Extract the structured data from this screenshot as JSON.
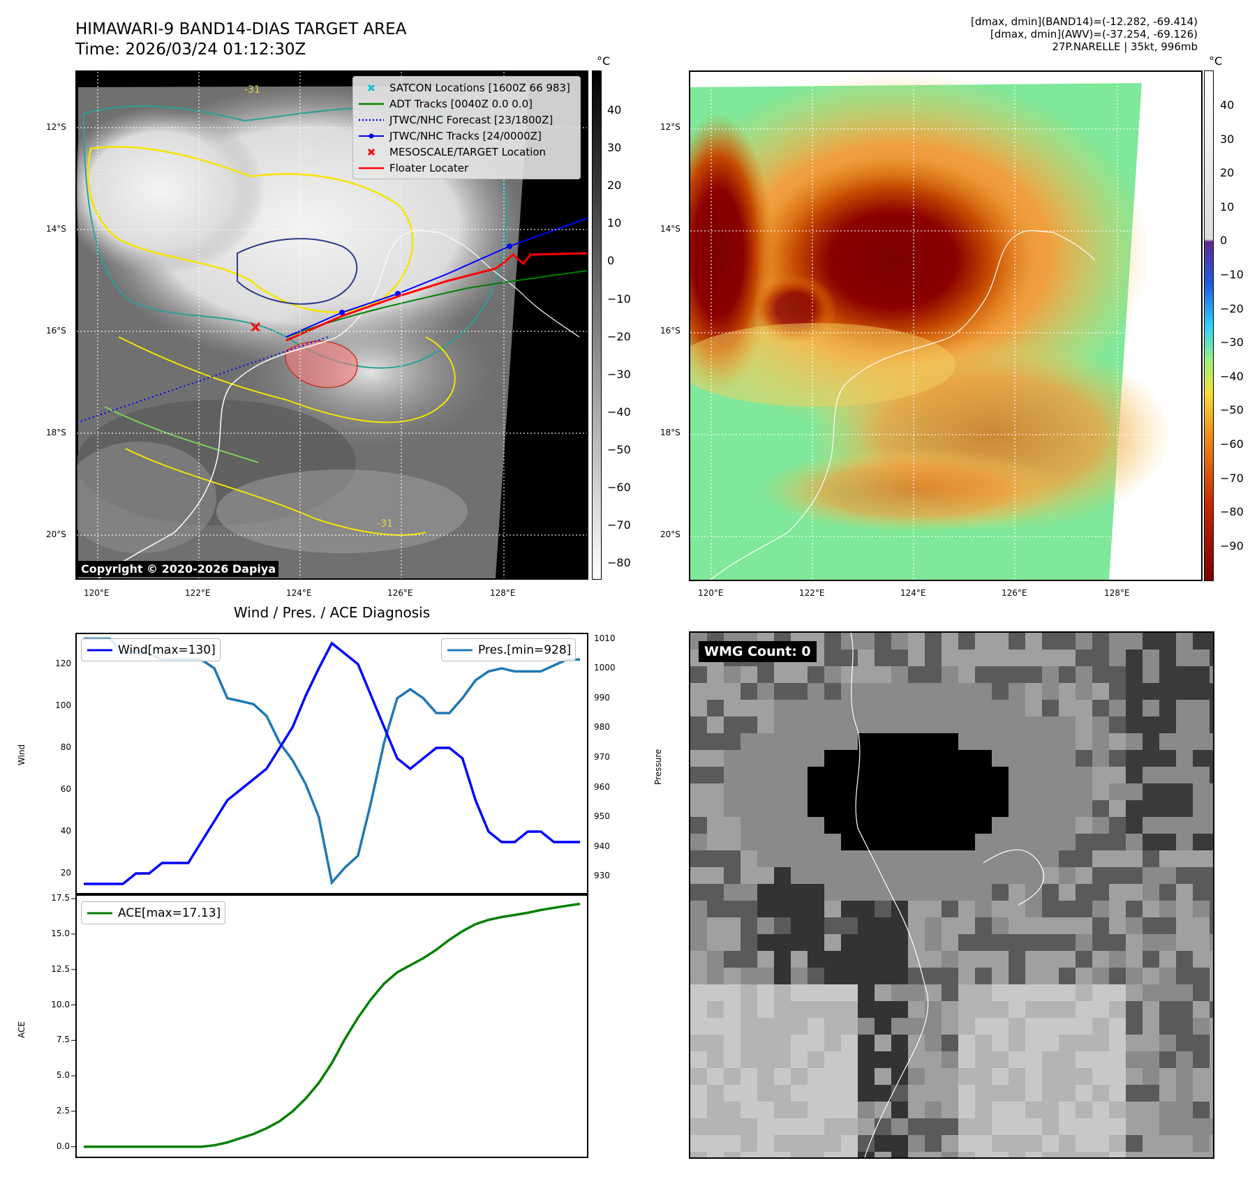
{
  "header": {
    "title_line1": "HIMAWARI-9 BAND14-DIAS TARGET AREA",
    "title_line2": "Time: 2026/03/24 01:12:30Z",
    "info_line1": "[dmax, dmin](BAND14)=(-12.282, -69.414)",
    "info_line2": "[dmax, dmin](AWV)=(-37.254, -69.126)",
    "info_line3": "27P.NARELLE | 35kt, 996mb"
  },
  "map_axes": {
    "lon_labels": [
      "120°E",
      "122°E",
      "124°E",
      "126°E",
      "128°E"
    ],
    "lat_labels": [
      "12°S",
      "14°S",
      "16°S",
      "18°S",
      "20°S"
    ]
  },
  "ir_panel": {
    "colorbar_unit": "°C",
    "colorbar_ticks": [
      "40",
      "30",
      "20",
      "10",
      "0",
      "−10",
      "−20",
      "−30",
      "−40",
      "−50",
      "−60",
      "−70",
      "−80"
    ],
    "copyright": "Copyright © 2020-2026 Dapiya",
    "contour_label": "-31",
    "legend": [
      {
        "label": "SATCON Locations [1600Z 66 983]",
        "color": "#17becf",
        "style": "x"
      },
      {
        "label": "ADT Tracks [0040Z 0.0 0.0]",
        "color": "#008000",
        "style": "line"
      },
      {
        "label": "JTWC/NHC Forecast [23/1800Z]",
        "color": "#0000ff",
        "style": "dotted"
      },
      {
        "label": "JTWC/NHC Tracks [24/0000Z]",
        "color": "#0000ff",
        "style": "line-dot"
      },
      {
        "label": "MESOSCALE/TARGET Location",
        "color": "#ff0000",
        "style": "x"
      },
      {
        "label": "Floater Locater",
        "color": "#ff0000",
        "style": "line"
      }
    ]
  },
  "awv_panel": {
    "colorbar_unit": "°C",
    "colorbar_ticks": [
      "40",
      "30",
      "20",
      "10",
      "0",
      "−10",
      "−20",
      "−30",
      "−40",
      "−50",
      "−60",
      "−70",
      "−80",
      "−90"
    ]
  },
  "wmg_panel": {
    "count_label": "WMG Count: 0"
  },
  "chart_data": [
    {
      "type": "line",
      "title": "Wind / Pres. / ACE Diagnosis",
      "ylabel": "Wind",
      "ylabel_right": "Pressure",
      "ylim": [
        10,
        135
      ],
      "ylim_right": [
        924,
        1012
      ],
      "y_ticks": [
        "20",
        "40",
        "60",
        "80",
        "100",
        "120"
      ],
      "y_ticks_right": [
        "930",
        "940",
        "950",
        "960",
        "970",
        "980",
        "990",
        "1000",
        "1010"
      ],
      "series": [
        {
          "name": "Wind[max=130]",
          "color": "#0000ff",
          "values": [
            15,
            15,
            15,
            15,
            20,
            20,
            25,
            25,
            25,
            35,
            45,
            55,
            60,
            65,
            70,
            80,
            90,
            105,
            118,
            130,
            125,
            120,
            105,
            90,
            75,
            70,
            75,
            80,
            80,
            75,
            55,
            40,
            35,
            35,
            40,
            40,
            35,
            35,
            35
          ]
        },
        {
          "name": "Pres.[min=928]",
          "color": "#1f77b4",
          "axis": "right",
          "values": [
            1010,
            1010,
            1010,
            1005,
            1006,
            1005,
            1003,
            1003,
            1003,
            1003,
            1000,
            990,
            989,
            988,
            984,
            975,
            969,
            961,
            950,
            928,
            933,
            937,
            955,
            975,
            990,
            993,
            990,
            985,
            985,
            990,
            996,
            999,
            1000,
            999,
            999,
            999,
            1001,
            1003,
            1003
          ]
        }
      ]
    },
    {
      "type": "line",
      "ylabel": "ACE",
      "ylim": [
        -0.8,
        17.8
      ],
      "y_ticks": [
        "0.0",
        "2.5",
        "5.0",
        "7.5",
        "10.0",
        "12.5",
        "15.0",
        "17.5"
      ],
      "series": [
        {
          "name": "ACE[max=17.13]",
          "color": "#008000",
          "values": [
            0,
            0,
            0,
            0,
            0,
            0,
            0,
            0,
            0,
            0,
            0.1,
            0.3,
            0.6,
            0.9,
            1.3,
            1.8,
            2.5,
            3.4,
            4.5,
            5.9,
            7.6,
            9.1,
            10.4,
            11.5,
            12.3,
            12.8,
            13.3,
            13.9,
            14.6,
            15.2,
            15.7,
            16.0,
            16.2,
            16.35,
            16.5,
            16.7,
            16.85,
            17.0,
            17.13
          ]
        }
      ]
    }
  ]
}
